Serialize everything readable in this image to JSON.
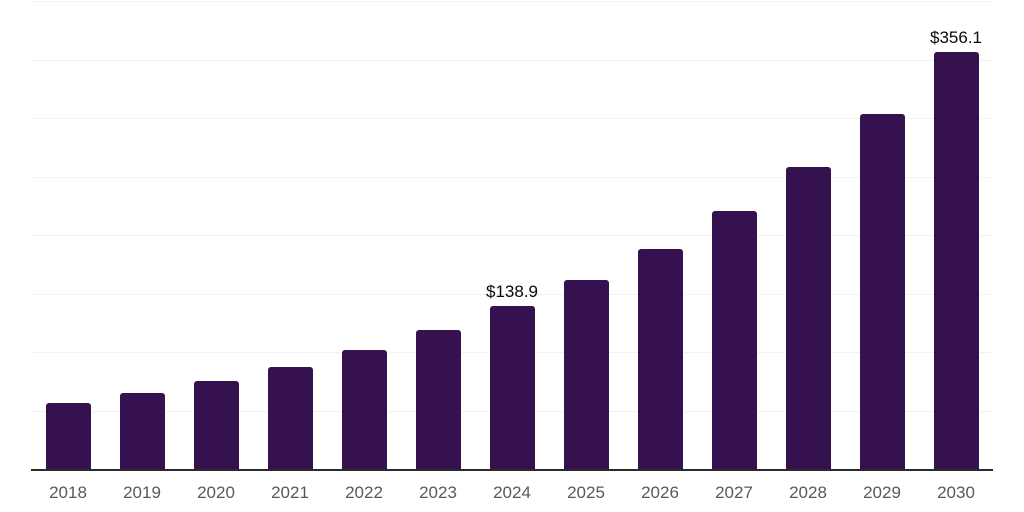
{
  "chart_data": {
    "type": "bar",
    "title": "",
    "xlabel": "",
    "ylabel": "",
    "categories": [
      "2018",
      "2019",
      "2020",
      "2021",
      "2022",
      "2023",
      "2024",
      "2025",
      "2026",
      "2027",
      "2028",
      "2029",
      "2030"
    ],
    "values": [
      56.2,
      65.3,
      75.0,
      87.2,
      101.8,
      118.9,
      138.9,
      161.7,
      188.2,
      220.7,
      258.3,
      303.7,
      356.1
    ],
    "point_labels": [
      "",
      "",
      "",
      "",
      "",
      "",
      "$138.9",
      "",
      "",
      "",
      "",
      "",
      "$356.1"
    ],
    "ylim": [
      0,
      400
    ],
    "grid_step": 50,
    "grid": "horizontal",
    "legend": "none",
    "y_tick_labels_visible": false,
    "colors": {
      "bar": "#36114f",
      "value_label": "#0a0a0a",
      "tick_label": "#595959",
      "axis_line": "#2b2b2b",
      "gridline": "#f2f2f2",
      "background": "#ffffff"
    }
  }
}
